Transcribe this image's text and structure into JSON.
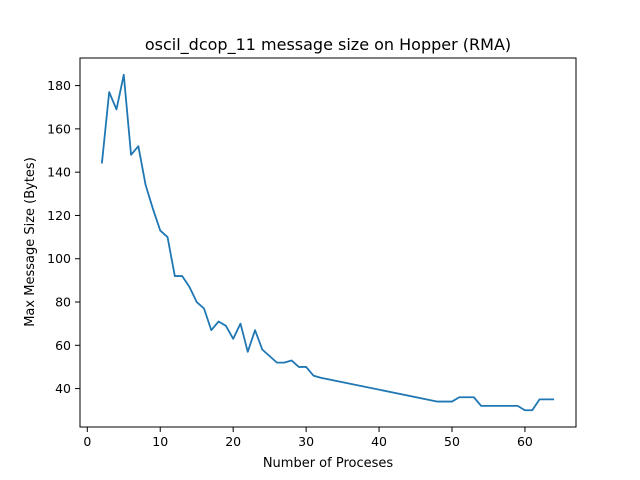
{
  "chart_data": {
    "type": "line",
    "title": "oscil_dcop_11 message size on Hopper (RMA)",
    "xlabel": "Number of Proceses",
    "ylabel": "Max Message Size (Bytes)",
    "xlim": [
      -1,
      67
    ],
    "ylim": [
      22.25,
      192.75
    ],
    "x_ticks": [
      0,
      10,
      20,
      30,
      40,
      50,
      60
    ],
    "y_ticks": [
      40,
      60,
      80,
      100,
      120,
      140,
      160,
      180
    ],
    "grid": false,
    "legend": "none",
    "line_color": "#1f77b4",
    "series": [
      {
        "x": [
          2,
          3,
          4,
          5,
          6,
          7,
          8,
          9,
          10,
          11,
          12,
          13,
          14,
          15,
          16,
          17,
          18,
          19,
          20,
          21,
          22,
          23,
          24,
          25,
          26,
          27,
          28,
          29,
          30,
          31,
          32,
          48,
          49,
          50,
          51,
          52,
          53,
          54,
          55,
          56,
          57,
          58,
          59,
          60,
          61,
          62,
          63,
          64
        ],
        "values": [
          144,
          177,
          169,
          185,
          148,
          152,
          134,
          123,
          113,
          110,
          92,
          92,
          87,
          80,
          77,
          67,
          71,
          69,
          63,
          70,
          57,
          67,
          58,
          55,
          52,
          52,
          53,
          50,
          50,
          46,
          45,
          34,
          34,
          34,
          36,
          36,
          36,
          32,
          32,
          32,
          32,
          32,
          32,
          30,
          30,
          35,
          35,
          35
        ]
      }
    ]
  }
}
